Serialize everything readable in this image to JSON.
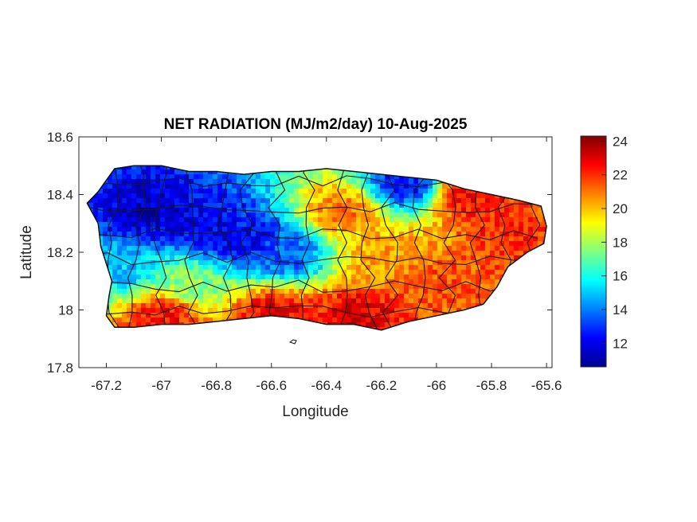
{
  "title": "NET RADIATION (MJ/m2/day) 10-Aug-2025",
  "chart_data": {
    "type": "heatmap",
    "title": "NET RADIATION (MJ/m2/day) 10-Aug-2025",
    "xlabel": "Longitude",
    "ylabel": "Latitude",
    "xlim": [
      -67.3,
      -65.58
    ],
    "ylim": [
      17.8,
      18.6
    ],
    "x_ticks": [
      -67.2,
      -67,
      -66.8,
      -66.6,
      -66.4,
      -66.2,
      -66,
      -65.8,
      -65.6
    ],
    "x_tick_labels": [
      "-67.2",
      "-67",
      "-66.8",
      "-66.6",
      "-66.4",
      "-66.2",
      "-66",
      "-65.8",
      "-65.6"
    ],
    "y_ticks": [
      18.6,
      18.4,
      18.2,
      18,
      17.8
    ],
    "y_tick_labels": [
      "18.6",
      "18.4",
      "18.2",
      "18",
      "17.8"
    ],
    "colorbar": {
      "colormap": "jet",
      "range": [
        10.6,
        24.3
      ],
      "ticks": [
        12,
        14,
        16,
        18,
        20,
        22,
        24
      ],
      "tick_labels": [
        "12",
        "14",
        "16",
        "18",
        "20",
        "22",
        "24"
      ]
    },
    "outline_lonlat": [
      [
        -67.27,
        18.37
      ],
      [
        -67.23,
        18.41
      ],
      [
        -67.2,
        18.45
      ],
      [
        -67.17,
        18.49
      ],
      [
        -67.1,
        18.5
      ],
      [
        -67.0,
        18.5
      ],
      [
        -66.9,
        18.48
      ],
      [
        -66.8,
        18.48
      ],
      [
        -66.7,
        18.47
      ],
      [
        -66.6,
        18.48
      ],
      [
        -66.5,
        18.48
      ],
      [
        -66.4,
        18.49
      ],
      [
        -66.3,
        18.48
      ],
      [
        -66.2,
        18.47
      ],
      [
        -66.1,
        18.46
      ],
      [
        -66.0,
        18.45
      ],
      [
        -65.9,
        18.42
      ],
      [
        -65.8,
        18.4
      ],
      [
        -65.7,
        18.38
      ],
      [
        -65.62,
        18.36
      ],
      [
        -65.6,
        18.29
      ],
      [
        -65.61,
        18.23
      ],
      [
        -65.67,
        18.2
      ],
      [
        -65.74,
        18.15
      ],
      [
        -65.78,
        18.08
      ],
      [
        -65.83,
        18.02
      ],
      [
        -65.9,
        18.0
      ],
      [
        -66.0,
        17.98
      ],
      [
        -66.1,
        17.96
      ],
      [
        -66.2,
        17.93
      ],
      [
        -66.3,
        17.95
      ],
      [
        -66.4,
        17.95
      ],
      [
        -66.5,
        17.97
      ],
      [
        -66.6,
        17.98
      ],
      [
        -66.7,
        17.97
      ],
      [
        -66.8,
        17.96
      ],
      [
        -66.9,
        17.95
      ],
      [
        -67.0,
        17.95
      ],
      [
        -67.1,
        17.94
      ],
      [
        -67.17,
        17.94
      ],
      [
        -67.2,
        17.98
      ],
      [
        -67.19,
        18.05
      ],
      [
        -67.18,
        18.1
      ],
      [
        -67.2,
        18.16
      ],
      [
        -67.22,
        18.22
      ],
      [
        -67.23,
        18.3
      ]
    ],
    "field_centers": [
      {
        "lon": -67.05,
        "lat": 18.35,
        "value": 11.5
      },
      {
        "lon": -66.85,
        "lat": 18.3,
        "value": 12.0
      },
      {
        "lon": -66.7,
        "lat": 18.25,
        "value": 12.2
      },
      {
        "lon": -66.55,
        "lat": 18.2,
        "value": 13.5
      },
      {
        "lon": -66.12,
        "lat": 18.44,
        "value": 12.5
      },
      {
        "lon": -65.9,
        "lat": 18.4,
        "value": 22.5
      },
      {
        "lon": -65.75,
        "lat": 18.25,
        "value": 22.0
      },
      {
        "lon": -66.35,
        "lat": 18.35,
        "value": 21.0
      },
      {
        "lon": -66.2,
        "lat": 18.2,
        "value": 20.5
      },
      {
        "lon": -66.0,
        "lat": 18.1,
        "value": 21.5
      },
      {
        "lon": -67.0,
        "lat": 17.99,
        "value": 22.5
      },
      {
        "lon": -66.6,
        "lat": 18.0,
        "value": 22.8
      },
      {
        "lon": -66.3,
        "lat": 17.99,
        "value": 23.0
      },
      {
        "lon": -67.15,
        "lat": 18.15,
        "value": 15.0
      },
      {
        "lon": -66.9,
        "lat": 18.1,
        "value": 17.5
      }
    ]
  }
}
